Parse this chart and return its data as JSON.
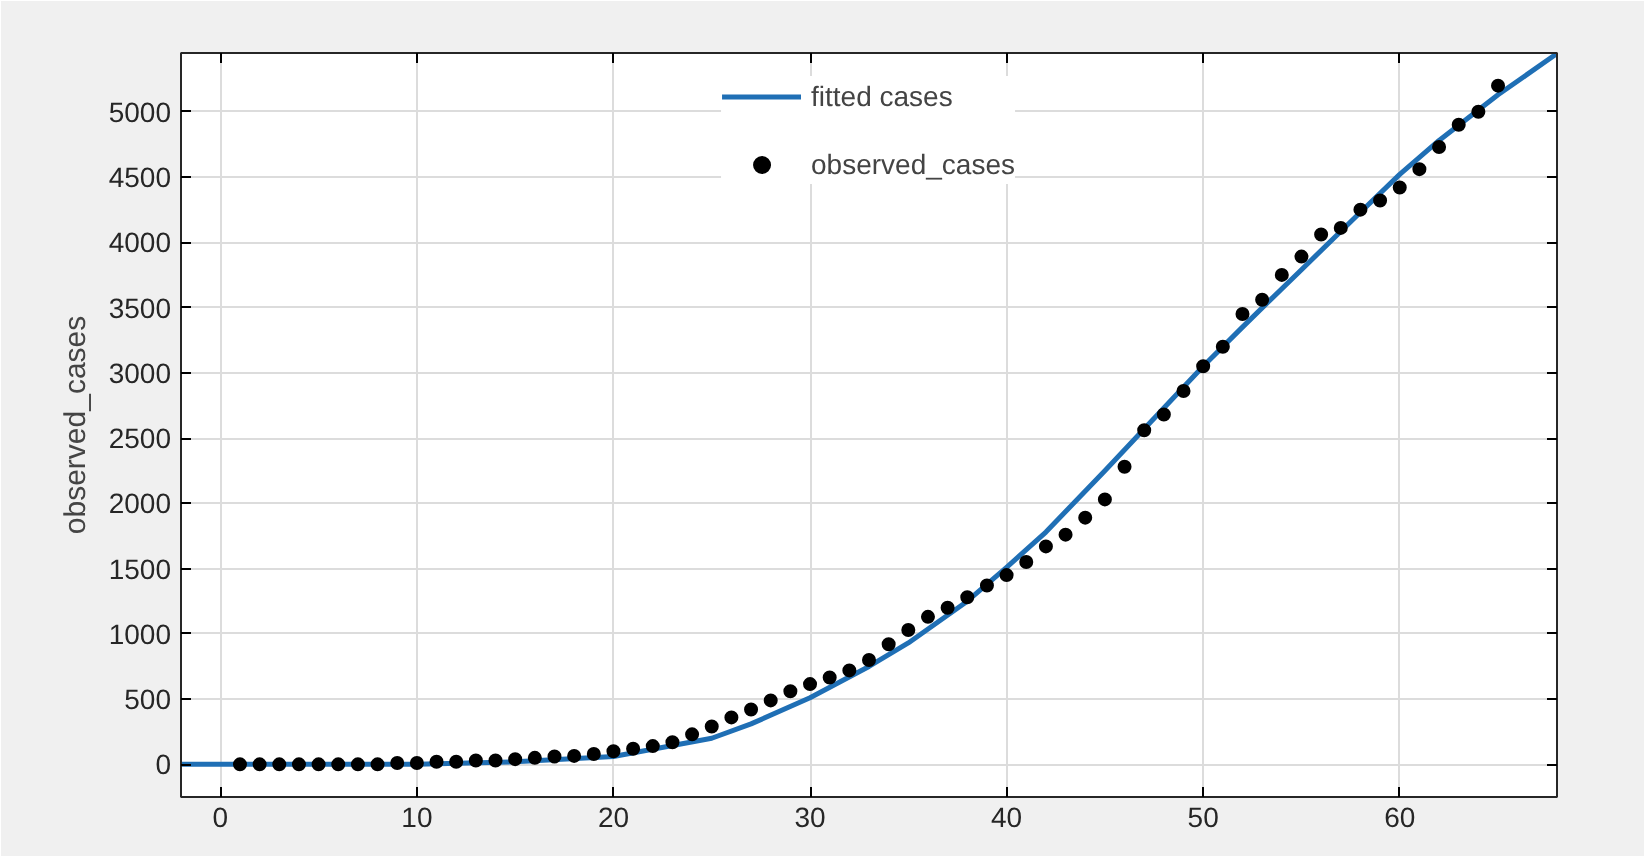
{
  "chart_data": {
    "type": "scatter",
    "ylabel": "observed_cases",
    "xlim": [
      -2,
      68
    ],
    "ylim": [
      -250,
      5450
    ],
    "xticks": [
      0,
      10,
      20,
      30,
      40,
      50,
      60
    ],
    "yticks": [
      0,
      500,
      1000,
      1500,
      2000,
      2500,
      3000,
      3500,
      4000,
      4500,
      5000
    ],
    "grid": true,
    "legend": "top",
    "series": [
      {
        "name": "fitted cases",
        "type": "line",
        "color": "#1f6fb5",
        "marker": "none",
        "x": [
          -2,
          0,
          5,
          10,
          15,
          20,
          25,
          27,
          30,
          33,
          35,
          38,
          40,
          42,
          45,
          48,
          50,
          52,
          55,
          58,
          60,
          62,
          65,
          68
        ],
        "values": [
          0,
          0,
          0,
          0,
          20,
          60,
          200,
          310,
          510,
          750,
          930,
          1250,
          1510,
          1780,
          2250,
          2730,
          3050,
          3350,
          3790,
          4230,
          4520,
          4780,
          5130,
          5446
        ]
      },
      {
        "name": "observed_cases",
        "color": "#000000",
        "marker": "circle",
        "x": [
          1,
          2,
          3,
          4,
          5,
          6,
          7,
          8,
          9,
          10,
          11,
          12,
          13,
          14,
          15,
          16,
          17,
          18,
          19,
          20,
          21,
          22,
          23,
          24,
          25,
          26,
          27,
          28,
          29,
          30,
          31,
          32,
          33,
          34,
          35,
          36,
          37,
          38,
          39,
          40,
          41,
          42,
          43,
          44,
          45,
          46,
          47,
          48,
          49,
          50,
          51,
          52,
          53,
          54,
          55,
          56,
          57,
          58,
          59,
          60,
          61,
          62,
          63,
          64,
          65
        ],
        "values": [
          0,
          0,
          0,
          0,
          0,
          0,
          0,
          0,
          10,
          10,
          20,
          20,
          30,
          30,
          40,
          50,
          60,
          65,
          80,
          100,
          120,
          140,
          170,
          230,
          290,
          360,
          420,
          490,
          560,
          615,
          665,
          720,
          800,
          920,
          1030,
          1130,
          1200,
          1280,
          1370,
          1450,
          1550,
          1670,
          1760,
          1890,
          2030,
          2280,
          2560,
          2680,
          2860,
          3050,
          3200,
          3450,
          3560,
          3750,
          3890,
          4060,
          4110,
          4250,
          4320,
          4420,
          4560,
          4730,
          4900,
          5000,
          5200
        ]
      }
    ]
  }
}
